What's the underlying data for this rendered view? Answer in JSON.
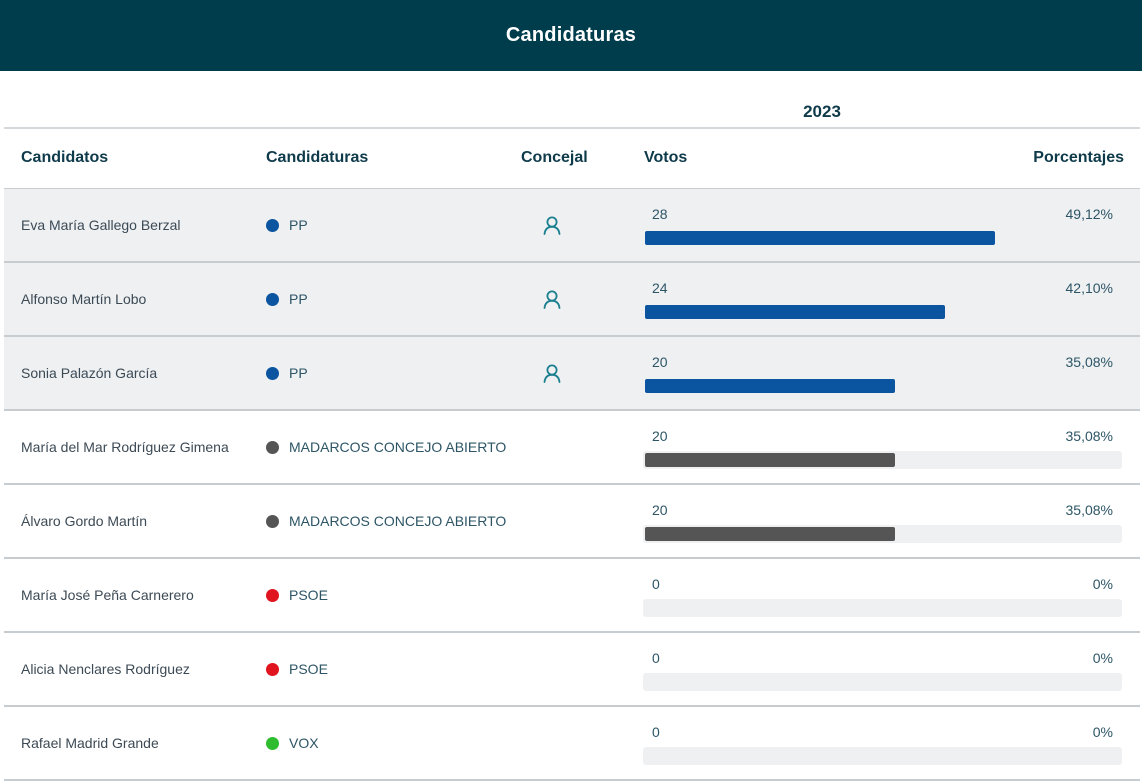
{
  "header": {
    "title": "Candidaturas"
  },
  "year": "2023",
  "columns": {
    "candidatos": "Candidatos",
    "candidaturas": "Candidaturas",
    "concejal": "Concejal",
    "votos": "Votos",
    "porcentajes": "Porcentajes"
  },
  "colors": {
    "PP": "#0b55a0",
    "MADARCOS CONCEJO ABIERTO": "#555555",
    "PSOE": "#e0141e",
    "VOX": "#2fbd2f",
    "header_bg": "#003d4c"
  },
  "rows": [
    {
      "name": "Eva María Gallego Berzal",
      "party": "PP",
      "councillor": true,
      "votes": "28",
      "percent": "49,12%",
      "share": 0.4912
    },
    {
      "name": "Alfonso Martín Lobo",
      "party": "PP",
      "councillor": true,
      "votes": "24",
      "percent": "42,10%",
      "share": 0.421
    },
    {
      "name": "Sonia Palazón García",
      "party": "PP",
      "councillor": true,
      "votes": "20",
      "percent": "35,08%",
      "share": 0.3508
    },
    {
      "name": "María del Mar Rodríguez Gimena",
      "party": "MADARCOS CONCEJO ABIERTO",
      "councillor": false,
      "votes": "20",
      "percent": "35,08%",
      "share": 0.3508
    },
    {
      "name": "Álvaro Gordo Martín",
      "party": "MADARCOS CONCEJO ABIERTO",
      "councillor": false,
      "votes": "20",
      "percent": "35,08%",
      "share": 0.3508
    },
    {
      "name": "María José Peña Carnerero",
      "party": "PSOE",
      "councillor": false,
      "votes": "0",
      "percent": "0%",
      "share": 0
    },
    {
      "name": "Alicia Nenclares Rodríguez",
      "party": "PSOE",
      "councillor": false,
      "votes": "0",
      "percent": "0%",
      "share": 0
    },
    {
      "name": "Rafael Madrid Grande",
      "party": "VOX",
      "councillor": false,
      "votes": "0",
      "percent": "0%",
      "share": 0
    }
  ]
}
